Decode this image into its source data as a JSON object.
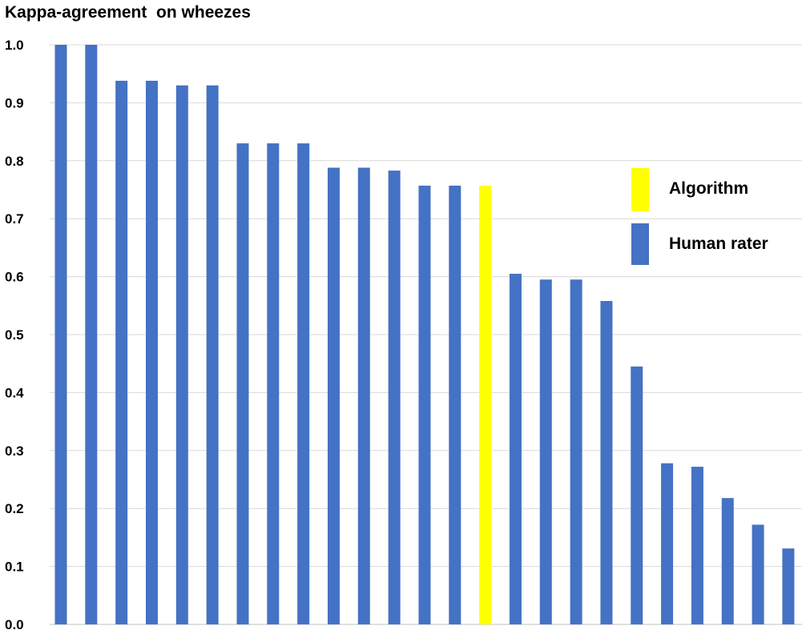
{
  "chart_data": {
    "type": "bar",
    "title": "Kappa-agreement  on wheezes",
    "ylim": [
      0.0,
      1.0
    ],
    "yticks": [
      "0.0",
      "0.1",
      "0.2",
      "0.3",
      "0.4",
      "0.5",
      "0.6",
      "0.7",
      "0.8",
      "0.9",
      "1.0"
    ],
    "grid": true,
    "legend_position": "right",
    "series": [
      {
        "name": "Algorithm",
        "color": "#FFFF00"
      },
      {
        "name": "Human rater",
        "color": "#4472C4"
      }
    ],
    "bars": [
      {
        "value": 1.0,
        "series": "Human rater"
      },
      {
        "value": 1.0,
        "series": "Human rater"
      },
      {
        "value": 0.938,
        "series": "Human rater"
      },
      {
        "value": 0.938,
        "series": "Human rater"
      },
      {
        "value": 0.93,
        "series": "Human rater"
      },
      {
        "value": 0.93,
        "series": "Human rater"
      },
      {
        "value": 0.83,
        "series": "Human rater"
      },
      {
        "value": 0.83,
        "series": "Human rater"
      },
      {
        "value": 0.83,
        "series": "Human rater"
      },
      {
        "value": 0.788,
        "series": "Human rater"
      },
      {
        "value": 0.788,
        "series": "Human rater"
      },
      {
        "value": 0.783,
        "series": "Human rater"
      },
      {
        "value": 0.757,
        "series": "Human rater"
      },
      {
        "value": 0.757,
        "series": "Human rater"
      },
      {
        "value": 0.757,
        "series": "Algorithm"
      },
      {
        "value": 0.605,
        "series": "Human rater"
      },
      {
        "value": 0.595,
        "series": "Human rater"
      },
      {
        "value": 0.595,
        "series": "Human rater"
      },
      {
        "value": 0.558,
        "series": "Human rater"
      },
      {
        "value": 0.445,
        "series": "Human rater"
      },
      {
        "value": 0.278,
        "series": "Human rater"
      },
      {
        "value": 0.272,
        "series": "Human rater"
      },
      {
        "value": 0.218,
        "series": "Human rater"
      },
      {
        "value": 0.172,
        "series": "Human rater"
      },
      {
        "value": 0.131,
        "series": "Human rater"
      }
    ]
  }
}
